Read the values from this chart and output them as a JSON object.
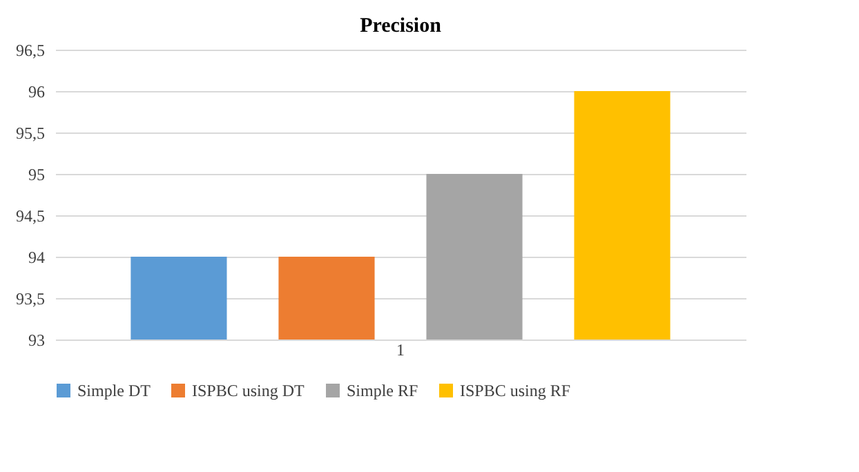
{
  "chart_data": {
    "type": "bar",
    "title": "Precision",
    "categories": [
      "1"
    ],
    "series": [
      {
        "name": "Simple DT",
        "color": "#5b9bd5",
        "values": [
          94
        ]
      },
      {
        "name": "ISPBC using DT",
        "color": "#ed7d31",
        "values": [
          94
        ]
      },
      {
        "name": "Simple RF",
        "color": "#a5a5a5",
        "values": [
          95
        ]
      },
      {
        "name": "ISPBC using RF",
        "color": "#ffc000",
        "values": [
          96
        ]
      }
    ],
    "ylim": [
      93,
      96.5
    ],
    "yticks": [
      93,
      {
        "value": 93.5,
        "label": "93,5"
      },
      94,
      {
        "value": 94.5,
        "label": "94,5"
      },
      95,
      {
        "value": 95.5,
        "label": "95,5"
      },
      96,
      {
        "value": 96.5,
        "label": "96,5"
      }
    ],
    "grid": "y",
    "legend": "bottom"
  }
}
